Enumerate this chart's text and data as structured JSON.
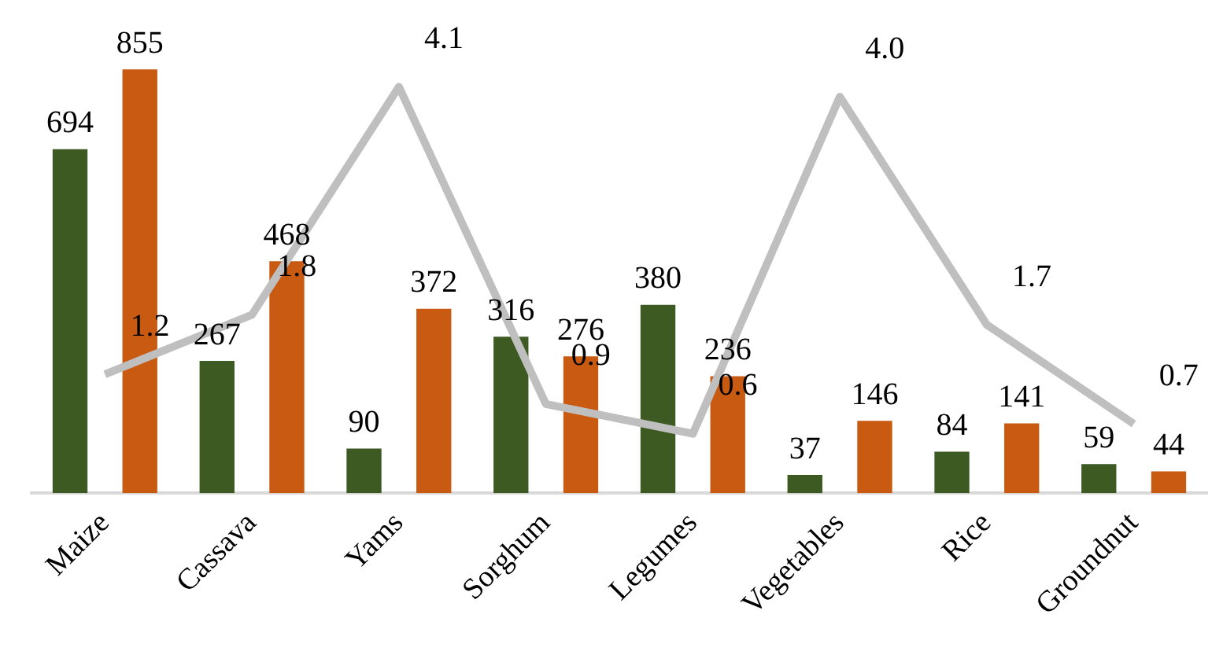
{
  "chart_data": {
    "type": "bar",
    "categories": [
      "Maize",
      "Cassava",
      "Yams",
      "Sorghum",
      "Legumes",
      "Vegetables",
      "Rice",
      "Groundnut"
    ],
    "series": [
      {
        "color": "#3d5a22",
        "values": [
          694,
          267,
          90,
          316,
          380,
          37,
          84,
          59
        ]
      },
      {
        "color": "#c85a12",
        "values": [
          855,
          468,
          372,
          276,
          236,
          146,
          141,
          44
        ]
      },
      {
        "type": "line",
        "axis": "y2",
        "color": "#bfbfbf",
        "values": [
          1.2,
          1.8,
          4.1,
          0.9,
          0.6,
          4.0,
          1.7,
          0.7
        ],
        "value_labels": [
          "1.2",
          "1.8",
          "4.1",
          "0.9",
          "0.6",
          "4.0",
          "1.7",
          "0.7"
        ]
      }
    ],
    "tick_labels": "x",
    "data_labels": true,
    "grid": false,
    "legend": false,
    "marker": "none"
  }
}
